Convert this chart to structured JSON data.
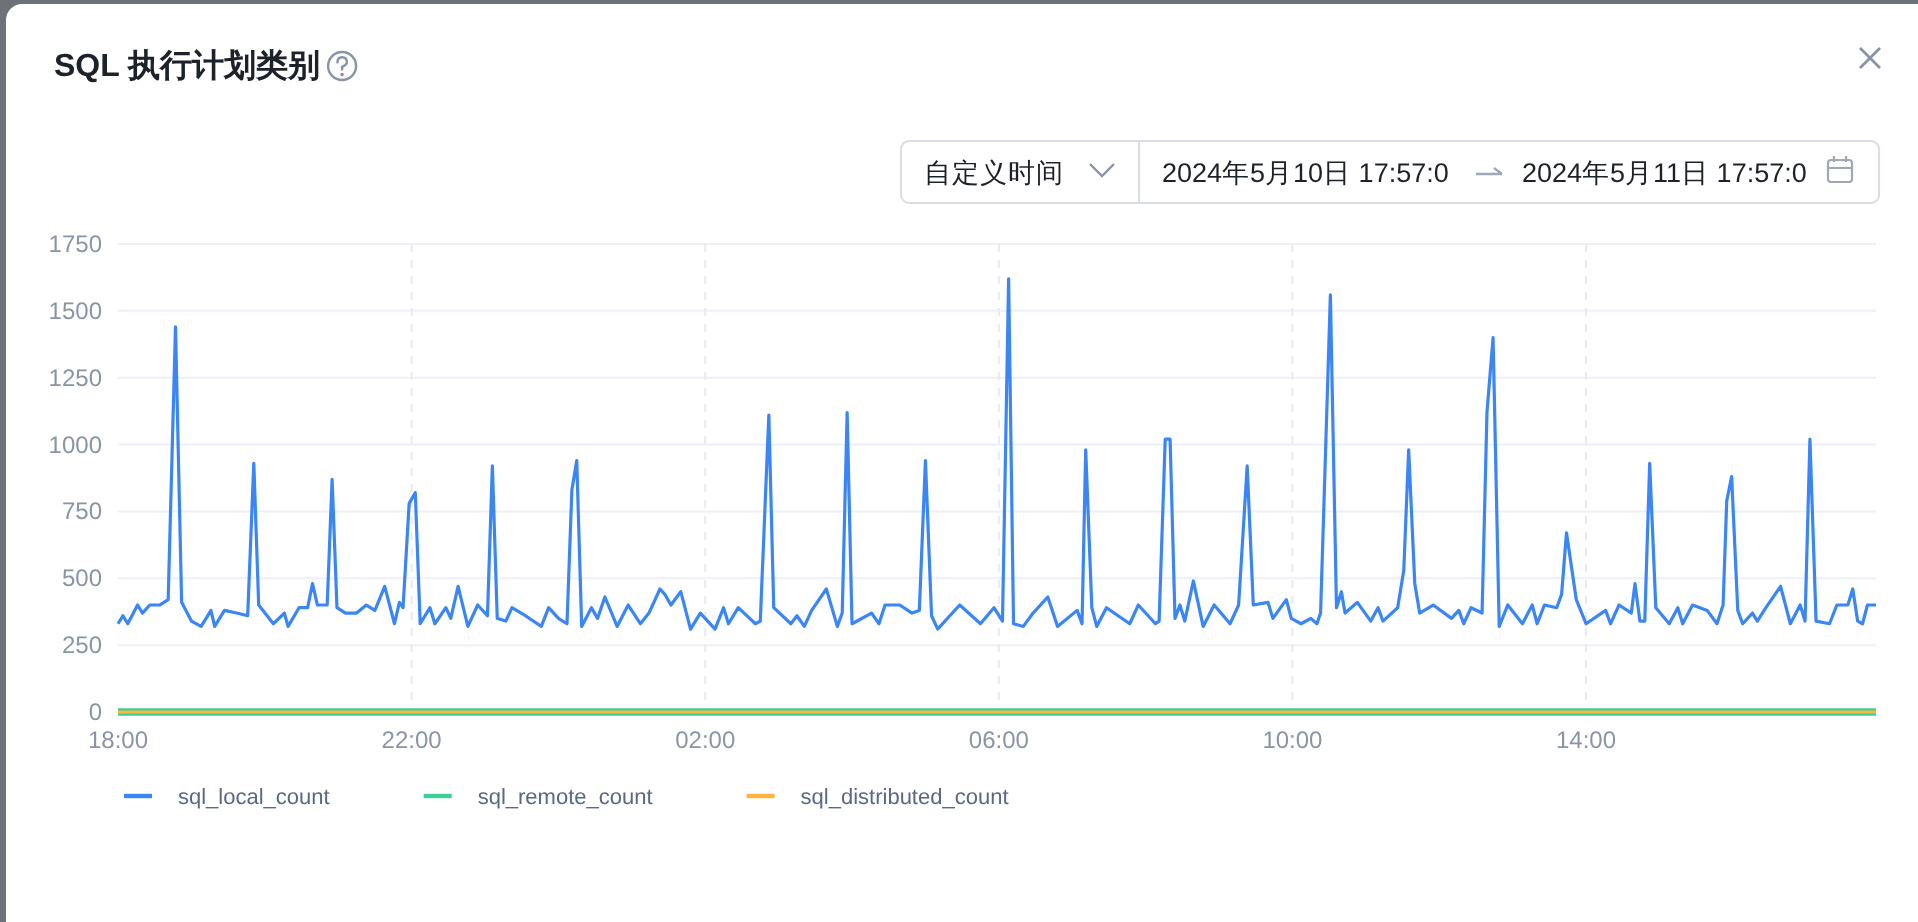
{
  "chart_data": {
    "type": "line",
    "title": "SQL 执行计划类别",
    "annotations": [
      "自定义时间",
      "2024年5月10日 17:57:0",
      "2024年5月11日 17:57:0"
    ],
    "xlim": [
      "2024-05-10T18:00",
      "2024-05-11T17:57"
    ],
    "xticks": [
      {
        "value": "2024-05-10T18:00",
        "label": "18:00"
      },
      {
        "value": "2024-05-10T22:00",
        "label": "22:00"
      },
      {
        "value": "2024-05-11T02:00",
        "label": "02:00"
      },
      {
        "value": "2024-05-11T06:00",
        "label": "06:00"
      },
      {
        "value": "2024-05-11T10:00",
        "label": "10:00"
      },
      {
        "value": "2024-05-11T14:00",
        "label": "14:00"
      }
    ],
    "ylim": [
      0,
      1750
    ],
    "yticks": [
      0,
      250,
      500,
      750,
      1000,
      1250,
      1500,
      1750
    ],
    "grid": true,
    "legend": "bottom left",
    "series": [
      {
        "name": "sql_local_count",
        "color": "#3b86f6",
        "x": [
          "2024-05-10T18:00",
          "2024-05-10T18:04",
          "2024-05-10T18:08",
          "2024-05-10T18:16",
          "2024-05-10T18:20",
          "2024-05-10T18:26",
          "2024-05-10T18:34",
          "2024-05-10T18:41",
          "2024-05-10T18:47",
          "2024-05-10T18:52",
          "2024-05-10T19:00",
          "2024-05-10T19:08",
          "2024-05-10T19:16",
          "2024-05-10T19:19",
          "2024-05-10T19:27",
          "2024-05-10T19:37",
          "2024-05-10T19:46",
          "2024-05-10T19:51",
          "2024-05-10T19:55",
          "2024-05-10T20:07",
          "2024-05-10T20:16",
          "2024-05-10T20:19",
          "2024-05-10T20:28",
          "2024-05-10T20:35",
          "2024-05-10T20:39",
          "2024-05-10T20:43",
          "2024-05-10T20:51",
          "2024-05-10T20:55",
          "2024-05-10T20:59",
          "2024-05-10T21:06",
          "2024-05-10T21:15",
          "2024-05-10T21:23",
          "2024-05-10T21:30",
          "2024-05-10T21:38",
          "2024-05-10T21:46",
          "2024-05-10T21:50",
          "2024-05-10T21:53",
          "2024-05-10T21:58",
          "2024-05-10T22:03",
          "2024-05-10T22:07",
          "2024-05-10T22:15",
          "2024-05-10T22:19",
          "2024-05-10T22:28",
          "2024-05-10T22:32",
          "2024-05-10T22:38",
          "2024-05-10T22:46",
          "2024-05-10T22:54",
          "2024-05-10T23:02",
          "2024-05-10T23:06",
          "2024-05-10T23:10",
          "2024-05-10T23:17",
          "2024-05-10T23:22",
          "2024-05-10T23:33",
          "2024-05-10T23:46",
          "2024-05-10T23:52",
          "2024-05-11T00:00",
          "2024-05-11T00:07",
          "2024-05-11T00:11",
          "2024-05-11T00:15",
          "2024-05-11T00:19",
          "2024-05-11T00:27",
          "2024-05-11T00:32",
          "2024-05-11T00:38",
          "2024-05-11T00:48",
          "2024-05-11T00:57",
          "2024-05-11T01:07",
          "2024-05-11T01:14",
          "2024-05-11T01:23",
          "2024-05-11T01:27",
          "2024-05-11T01:32",
          "2024-05-11T01:40",
          "2024-05-11T01:48",
          "2024-05-11T01:56",
          "2024-05-11T02:08",
          "2024-05-11T02:15",
          "2024-05-11T02:19",
          "2024-05-11T02:27",
          "2024-05-11T02:41",
          "2024-05-11T02:45",
          "2024-05-11T02:52",
          "2024-05-11T02:56",
          "2024-05-11T03:10",
          "2024-05-11T03:15",
          "2024-05-11T03:21",
          "2024-05-11T03:27",
          "2024-05-11T03:39",
          "2024-05-11T03:48",
          "2024-05-11T03:52",
          "2024-05-11T03:56",
          "2024-05-11T04:00",
          "2024-05-11T04:16",
          "2024-05-11T04:22",
          "2024-05-11T04:27",
          "2024-05-11T04:39",
          "2024-05-11T04:49",
          "2024-05-11T04:55",
          "2024-05-11T05:00",
          "2024-05-11T05:05",
          "2024-05-11T05:10",
          "2024-05-11T05:28",
          "2024-05-11T05:45",
          "2024-05-11T05:56",
          "2024-05-11T06:03",
          "2024-05-11T06:08",
          "2024-05-11T06:12",
          "2024-05-11T06:20",
          "2024-05-11T06:28",
          "2024-05-11T06:40",
          "2024-05-11T06:48",
          "2024-05-11T07:04",
          "2024-05-11T07:08",
          "2024-05-11T07:11",
          "2024-05-11T07:16",
          "2024-05-11T07:20",
          "2024-05-11T07:28",
          "2024-05-11T07:47",
          "2024-05-11T07:54",
          "2024-05-11T08:08",
          "2024-05-11T08:11",
          "2024-05-11T08:16",
          "2024-05-11T08:20",
          "2024-05-11T08:24",
          "2024-05-11T08:28",
          "2024-05-11T08:32",
          "2024-05-11T08:39",
          "2024-05-11T08:47",
          "2024-05-11T08:56",
          "2024-05-11T09:09",
          "2024-05-11T09:16",
          "2024-05-11T09:23",
          "2024-05-11T09:28",
          "2024-05-11T09:40",
          "2024-05-11T09:44",
          "2024-05-11T09:55",
          "2024-05-11T09:59",
          "2024-05-11T10:07",
          "2024-05-11T10:15",
          "2024-05-11T10:20",
          "2024-05-11T10:23",
          "2024-05-11T10:31",
          "2024-05-11T10:36",
          "2024-05-11T10:40",
          "2024-05-11T10:43",
          "2024-05-11T10:53",
          "2024-05-11T11:04",
          "2024-05-11T11:10",
          "2024-05-11T11:14",
          "2024-05-11T11:26",
          "2024-05-11T11:31",
          "2024-05-11T11:35",
          "2024-05-11T11:40",
          "2024-05-11T11:44",
          "2024-05-11T11:55",
          "2024-05-11T12:10",
          "2024-05-11T12:16",
          "2024-05-11T12:20",
          "2024-05-11T12:26",
          "2024-05-11T12:35",
          "2024-05-11T12:39",
          "2024-05-11T12:44",
          "2024-05-11T12:49",
          "2024-05-11T12:56",
          "2024-05-11T13:08",
          "2024-05-11T13:16",
          "2024-05-11T13:20",
          "2024-05-11T13:26",
          "2024-05-11T13:36",
          "2024-05-11T13:40",
          "2024-05-11T13:44",
          "2024-05-11T13:52",
          "2024-05-11T14:00",
          "2024-05-11T14:16",
          "2024-05-11T14:20",
          "2024-05-11T14:27",
          "2024-05-11T14:37",
          "2024-05-11T14:40",
          "2024-05-11T14:44",
          "2024-05-11T14:48",
          "2024-05-11T14:52",
          "2024-05-11T14:57",
          "2024-05-11T15:08",
          "2024-05-11T15:15",
          "2024-05-11T15:19",
          "2024-05-11T15:27",
          "2024-05-11T15:39",
          "2024-05-11T15:47",
          "2024-05-11T15:52",
          "2024-05-11T15:55",
          "2024-05-11T15:59",
          "2024-05-11T16:04",
          "2024-05-11T16:08",
          "2024-05-11T16:16",
          "2024-05-11T16:20",
          "2024-05-11T16:27",
          "2024-05-11T16:39",
          "2024-05-11T16:47",
          "2024-05-11T16:55",
          "2024-05-11T16:59",
          "2024-05-11T17:03",
          "2024-05-11T17:08",
          "2024-05-11T17:19",
          "2024-05-11T17:25",
          "2024-05-11T17:34",
          "2024-05-11T17:38",
          "2024-05-11T17:42",
          "2024-05-11T17:46",
          "2024-05-11T17:50",
          "2024-05-11T17:57"
        ],
        "values": [
          330,
          360,
          330,
          400,
          370,
          400,
          400,
          420,
          1440,
          410,
          340,
          320,
          380,
          320,
          380,
          370,
          360,
          930,
          400,
          330,
          370,
          320,
          390,
          390,
          480,
          400,
          400,
          870,
          390,
          370,
          370,
          400,
          380,
          470,
          330,
          410,
          390,
          780,
          820,
          330,
          390,
          330,
          390,
          350,
          470,
          320,
          400,
          360,
          920,
          350,
          340,
          390,
          360,
          320,
          390,
          350,
          330,
          830,
          940,
          320,
          390,
          350,
          430,
          320,
          400,
          330,
          370,
          460,
          440,
          400,
          450,
          310,
          370,
          310,
          390,
          330,
          390,
          330,
          340,
          1110,
          390,
          330,
          360,
          320,
          380,
          460,
          320,
          370,
          1120,
          330,
          370,
          330,
          400,
          400,
          370,
          380,
          940,
          360,
          310,
          400,
          330,
          390,
          340,
          1620,
          330,
          320,
          370,
          430,
          320,
          380,
          330,
          980,
          390,
          320,
          390,
          330,
          400,
          330,
          340,
          1020,
          1020,
          350,
          400,
          340,
          490,
          320,
          400,
          330,
          400,
          920,
          400,
          410,
          350,
          420,
          350,
          330,
          350,
          330,
          370,
          1560,
          390,
          450,
          370,
          410,
          340,
          390,
          340,
          390,
          530,
          980,
          480,
          370,
          400,
          350,
          380,
          330,
          390,
          370,
          1120,
          1400,
          320,
          400,
          330,
          400,
          330,
          400,
          390,
          440,
          670,
          420,
          330,
          380,
          330,
          400,
          370,
          480,
          340,
          340,
          930,
          390,
          330,
          390,
          330,
          400,
          380,
          330,
          400,
          790,
          880,
          380,
          330,
          370,
          340,
          390,
          470,
          330,
          400,
          340,
          1020,
          340,
          330,
          400,
          400,
          460,
          340,
          330,
          400,
          400
        ]
      },
      {
        "name": "sql_remote_count",
        "color": "#3ccf9a",
        "x": [
          "2024-05-10T18:00",
          "2024-05-11T17:57"
        ],
        "values": [
          0,
          0
        ]
      },
      {
        "name": "sql_distributed_count",
        "color": "#ffb53d",
        "x": [
          "2024-05-10T18:00",
          "2024-05-11T17:57"
        ],
        "values": [
          0,
          0
        ]
      }
    ]
  }
}
